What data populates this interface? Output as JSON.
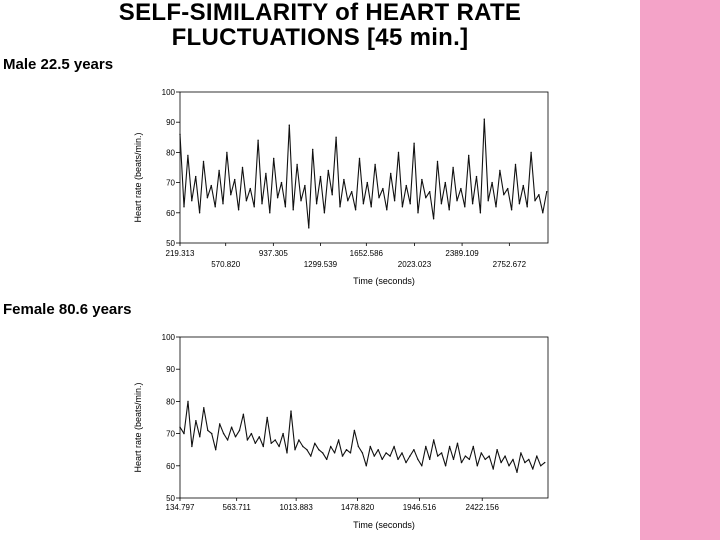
{
  "title_line1": "SELF-SIMILARITY of HEART RATE",
  "title_line2": "FLUCTUATIONS [45 min.]",
  "colors": {
    "band": "#f4a3c8",
    "trace": "#111111",
    "axis": "#000000"
  },
  "chart_data": [
    {
      "type": "line",
      "panel_label": "Male 22.5 years",
      "xlabel": "Time  (seconds)",
      "ylabel": "Heart rate  (beats/min.)",
      "xlim": [
        219.313,
        3050
      ],
      "ylim": [
        50,
        100
      ],
      "yticks": [
        50,
        60,
        70,
        80,
        90,
        100
      ],
      "xticks_upper": [
        "219.313",
        "937.305",
        "1652.586",
        "2389.109"
      ],
      "xticks_lower": [
        "570.820",
        "1299.539",
        "2023.023",
        "2752.672"
      ],
      "xtick_values_upper": [
        219.313,
        937.305,
        1652.586,
        2389.109
      ],
      "xtick_values_lower": [
        570.82,
        1299.539,
        2023.023,
        2752.672
      ],
      "series": [
        {
          "x": [
            219,
            250,
            280,
            310,
            340,
            370,
            400,
            430,
            460,
            490,
            520,
            550,
            580,
            610,
            640,
            670,
            700,
            730,
            760,
            790,
            820,
            850,
            880,
            910,
            940,
            970,
            1000,
            1030,
            1060,
            1090,
            1120,
            1150,
            1180,
            1210,
            1240,
            1270,
            1300,
            1330,
            1360,
            1390,
            1420,
            1450,
            1480,
            1510,
            1540,
            1570,
            1600,
            1630,
            1660,
            1690,
            1720,
            1750,
            1780,
            1810,
            1840,
            1870,
            1900,
            1930,
            1960,
            1990,
            2020,
            2050,
            2080,
            2110,
            2140,
            2170,
            2200,
            2230,
            2260,
            2290,
            2320,
            2350,
            2380,
            2410,
            2440,
            2470,
            2500,
            2530,
            2560,
            2590,
            2620,
            2650,
            2680,
            2710,
            2740,
            2770,
            2800,
            2830,
            2860,
            2890,
            2920,
            2950,
            2980,
            3010,
            3040
          ],
          "y": [
            86,
            62,
            79,
            64,
            72,
            60,
            77,
            65,
            69,
            62,
            74,
            63,
            80,
            66,
            71,
            61,
            75,
            64,
            68,
            62,
            84,
            63,
            73,
            60,
            78,
            65,
            70,
            62,
            89,
            61,
            76,
            64,
            69,
            55,
            81,
            63,
            72,
            60,
            74,
            66,
            85,
            62,
            71,
            64,
            67,
            61,
            78,
            63,
            70,
            62,
            76,
            65,
            68,
            61,
            73,
            64,
            80,
            62,
            69,
            63,
            83,
            60,
            71,
            65,
            67,
            58,
            77,
            63,
            70,
            61,
            75,
            64,
            68,
            62,
            79,
            63,
            72,
            60,
            91,
            64,
            70,
            62,
            74,
            66,
            68,
            61,
            76,
            63,
            69,
            62,
            80,
            64,
            66,
            60,
            67
          ]
        }
      ]
    },
    {
      "type": "line",
      "panel_label": "Female 80.6 years",
      "xlabel": "Time  (seconds)",
      "ylabel": "Heart rate  (beats/min.)",
      "xlim": [
        134.797,
        2920
      ],
      "ylim": [
        50,
        100
      ],
      "yticks": [
        50,
        60,
        70,
        80,
        90,
        100
      ],
      "xticks": [
        "134.797",
        "563.711",
        "1013.883",
        "1478.820",
        "1946.516",
        "2422.156"
      ],
      "xtick_values": [
        134.797,
        563.711,
        1013.883,
        1478.82,
        1946.516,
        2422.156
      ],
      "series": [
        {
          "x": [
            135,
            165,
            195,
            225,
            255,
            285,
            315,
            345,
            375,
            405,
            435,
            465,
            495,
            525,
            555,
            585,
            615,
            645,
            675,
            705,
            735,
            765,
            795,
            825,
            855,
            885,
            915,
            945,
            975,
            1005,
            1035,
            1065,
            1095,
            1125,
            1155,
            1185,
            1215,
            1245,
            1275,
            1305,
            1335,
            1365,
            1395,
            1425,
            1455,
            1485,
            1515,
            1545,
            1575,
            1605,
            1635,
            1665,
            1695,
            1725,
            1755,
            1785,
            1815,
            1845,
            1875,
            1905,
            1935,
            1965,
            1995,
            2025,
            2055,
            2085,
            2115,
            2145,
            2175,
            2205,
            2235,
            2265,
            2295,
            2325,
            2355,
            2385,
            2415,
            2445,
            2475,
            2505,
            2535,
            2565,
            2595,
            2625,
            2655,
            2685,
            2715,
            2745,
            2775,
            2805,
            2835,
            2865,
            2895
          ],
          "y": [
            72,
            70,
            80,
            66,
            74,
            69,
            78,
            71,
            70,
            65,
            73,
            70,
            68,
            72,
            69,
            71,
            76,
            68,
            70,
            67,
            69,
            66,
            75,
            67,
            68,
            66,
            70,
            64,
            77,
            65,
            68,
            66,
            65,
            63,
            67,
            65,
            64,
            62,
            66,
            64,
            68,
            63,
            65,
            64,
            71,
            66,
            64,
            60,
            66,
            63,
            65,
            62,
            64,
            63,
            66,
            62,
            64,
            61,
            63,
            65,
            62,
            60,
            66,
            62,
            68,
            63,
            64,
            60,
            66,
            62,
            67,
            61,
            63,
            62,
            66,
            60,
            64,
            62,
            63,
            59,
            65,
            61,
            63,
            60,
            62,
            58,
            64,
            61,
            62,
            59,
            63,
            60,
            61
          ]
        }
      ]
    }
  ]
}
